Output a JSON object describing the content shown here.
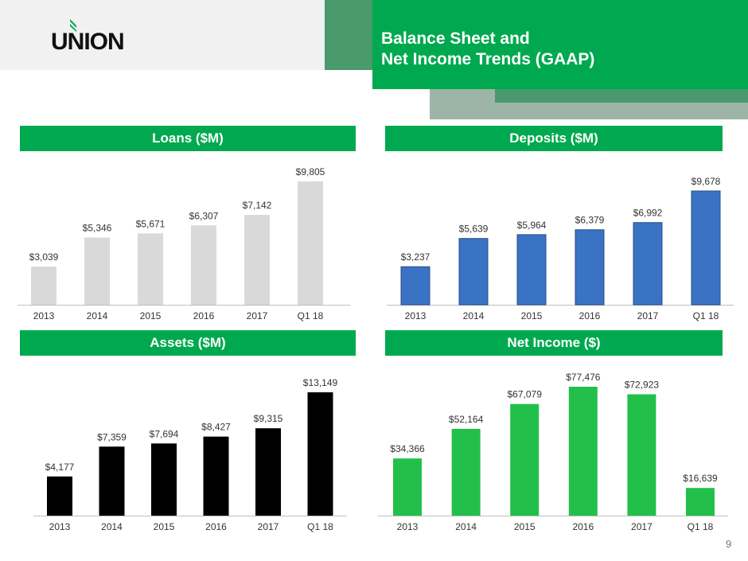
{
  "header": {
    "logo": "UNION",
    "title_line1": "Balance Sheet and",
    "title_line2": "Net Income Trends (GAAP)"
  },
  "page_number": "9",
  "chart_data": [
    {
      "type": "bar",
      "title": "Loans ($M)",
      "categories": [
        "2013",
        "2014",
        "2015",
        "2016",
        "2017",
        "Q1 18"
      ],
      "values": [
        3039,
        5346,
        5671,
        6307,
        7142,
        9805
      ],
      "labels": [
        "$3,039",
        "$5,346",
        "$5,671",
        "$6,307",
        "$7,142",
        "$9,805"
      ],
      "color": "#d9d9d9"
    },
    {
      "type": "bar",
      "title": "Deposits ($M)",
      "categories": [
        "2013",
        "2014",
        "2015",
        "2016",
        "2017",
        "Q1 18"
      ],
      "values": [
        3237,
        5639,
        5964,
        6379,
        6992,
        9678
      ],
      "labels": [
        "$3,237",
        "$5,639",
        "$5,964",
        "$6,379",
        "$6,992",
        "$9,678"
      ],
      "color": "#3a72c4"
    },
    {
      "type": "bar",
      "title": "Assets ($M)",
      "categories": [
        "2013",
        "2014",
        "2015",
        "2016",
        "2017",
        "Q1 18"
      ],
      "values": [
        4177,
        7359,
        7694,
        8427,
        9315,
        13149
      ],
      "labels": [
        "$4,177",
        "$7,359",
        "$7,694",
        "$8,427",
        "$9,315",
        "$13,149"
      ],
      "color": "#000000"
    },
    {
      "type": "bar",
      "title": "Net Income ($)",
      "categories": [
        "2013",
        "2014",
        "2015",
        "2016",
        "2017",
        "Q1 18"
      ],
      "values": [
        34366,
        52164,
        67079,
        77476,
        72923,
        16639
      ],
      "labels": [
        "$34,366",
        "$52,164",
        "$67,079",
        "$77,476",
        "$72,923",
        "$16,639"
      ],
      "color": "#22c04a"
    }
  ]
}
